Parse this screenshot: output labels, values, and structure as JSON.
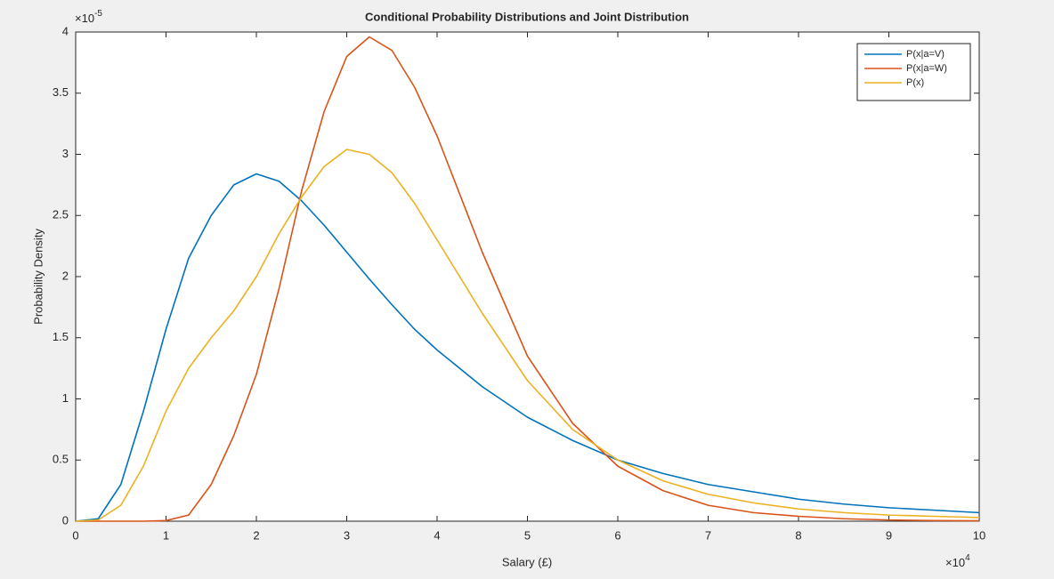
{
  "chart_data": {
    "type": "line",
    "title": "Conditional Probability Distributions and Joint Distribution",
    "x_label": "Salary (£)",
    "y_label": "Probability Density",
    "x_multiplier": "×10",
    "x_exponent": "4",
    "y_multiplier": "×10",
    "y_exponent": "-5",
    "x": [
      0,
      2500,
      5000,
      7500,
      10000,
      12500,
      15000,
      17500,
      20000,
      22500,
      25000,
      27500,
      30000,
      32500,
      35000,
      37500,
      40000,
      45000,
      50000,
      55000,
      60000,
      65000,
      70000,
      75000,
      80000,
      85000,
      90000,
      95000,
      100000
    ],
    "series": [
      {
        "name": "P(x|a=V)",
        "color": "#0072bd",
        "values": [
          0,
          2e-07,
          3e-06,
          9e-06,
          1.57e-05,
          2.15e-05,
          2.5e-05,
          2.75e-05,
          2.84e-05,
          2.78e-05,
          2.62e-05,
          2.42e-05,
          2.2e-05,
          1.98e-05,
          1.77e-05,
          1.57e-05,
          1.4e-05,
          1.1e-05,
          8.5e-06,
          6.6e-06,
          5e-06,
          3.9e-06,
          3e-06,
          2.4e-06,
          1.8e-06,
          1.4e-06,
          1.1e-06,
          9e-07,
          7e-07
        ]
      },
      {
        "name": "P(x|a=W)",
        "color": "#d95319",
        "values": [
          0,
          0,
          0,
          0,
          5e-08,
          5e-07,
          3e-06,
          7e-06,
          1.2e-05,
          1.9e-05,
          2.7e-05,
          3.35e-05,
          3.8e-05,
          3.96e-05,
          3.85e-05,
          3.55e-05,
          3.15e-05,
          2.2e-05,
          1.35e-05,
          8e-06,
          4.5e-06,
          2.5e-06,
          1.3e-06,
          7e-07,
          4e-07,
          2e-07,
          1e-07,
          5e-08,
          3e-08
        ]
      },
      {
        "name": "P(x)",
        "color": "#edb120",
        "values": [
          0,
          1e-07,
          1.3e-06,
          4.5e-06,
          9e-06,
          1.25e-05,
          1.5e-05,
          1.72e-05,
          2e-05,
          2.35e-05,
          2.65e-05,
          2.9e-05,
          3.04e-05,
          3e-05,
          2.85e-05,
          2.6e-05,
          2.3e-05,
          1.7e-05,
          1.15e-05,
          7.5e-06,
          5e-06,
          3.3e-06,
          2.2e-06,
          1.5e-06,
          1e-06,
          7e-07,
          5e-07,
          4e-07,
          3e-07
        ]
      }
    ],
    "xlim": [
      0,
      100000
    ],
    "xticks": [
      0,
      {
        "value": 10000,
        "label": "1"
      },
      {
        "value": 20000,
        "label": "2"
      },
      {
        "value": 30000,
        "label": "3"
      },
      {
        "value": 40000,
        "label": "4"
      },
      {
        "value": 50000,
        "label": "5"
      },
      {
        "value": 60000,
        "label": "6"
      },
      {
        "value": 70000,
        "label": "7"
      },
      {
        "value": 80000,
        "label": "8"
      },
      {
        "value": 90000,
        "label": "9"
      },
      {
        "value": 100000,
        "label": "10"
      }
    ],
    "ylim": [
      0,
      4e-05
    ],
    "yticks": [
      0,
      {
        "value": 5e-06,
        "label": "0.5"
      },
      {
        "value": 1e-05,
        "label": "1"
      },
      {
        "value": 1.5e-05,
        "label": "1.5"
      },
      {
        "value": 2e-05,
        "label": "2"
      },
      {
        "value": 2.5e-05,
        "label": "2.5"
      },
      {
        "value": 3e-05,
        "label": "3"
      },
      {
        "value": 3.5e-05,
        "label": "3.5"
      },
      {
        "value": 4e-05,
        "label": "4"
      }
    ],
    "grid": false,
    "legend": "top-right"
  }
}
